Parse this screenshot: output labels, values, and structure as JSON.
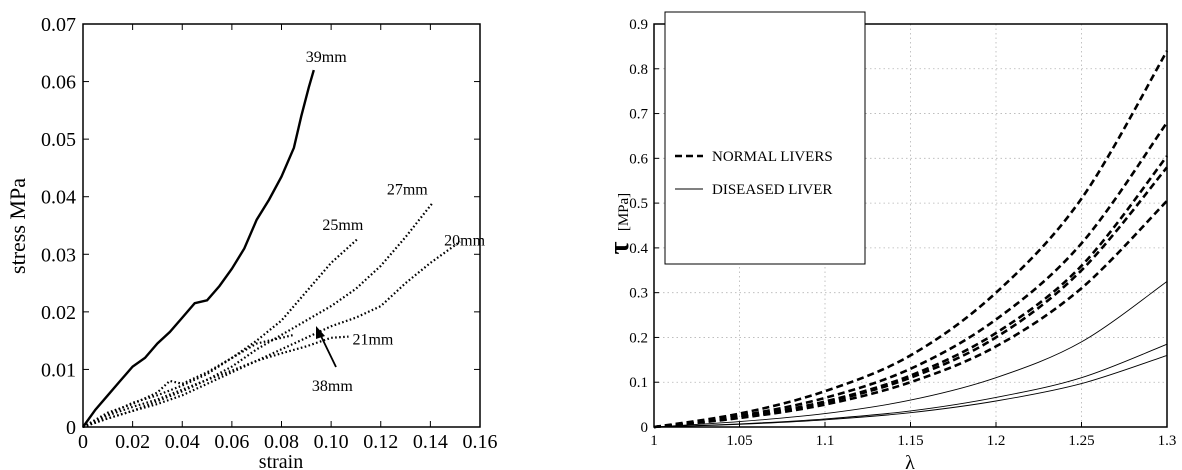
{
  "chart_data": [
    {
      "type": "line",
      "xlabel": "strain",
      "ylabel": "stress MPa",
      "xlim": [
        0,
        0.16
      ],
      "ylim": [
        0,
        0.07
      ],
      "xticks": [
        "0",
        "0.02",
        "0.04",
        "0.06",
        "0.08",
        "0.10",
        "0.12",
        "0.14",
        "0.16"
      ],
      "yticks": [
        "0",
        "0.01",
        "0.02",
        "0.03",
        "0.04",
        "0.05",
        "0.06",
        "0.07"
      ],
      "grid": false,
      "series": [
        {
          "name": "39mm",
          "style": "solid",
          "x": [
            0,
            0.005,
            0.01,
            0.015,
            0.02,
            0.025,
            0.03,
            0.035,
            0.04,
            0.045,
            0.05,
            0.055,
            0.06,
            0.065,
            0.07,
            0.075,
            0.08,
            0.085,
            0.088,
            0.091,
            0.093
          ],
          "y": [
            0,
            0.003,
            0.0055,
            0.008,
            0.0105,
            0.012,
            0.0145,
            0.0165,
            0.019,
            0.0215,
            0.022,
            0.0245,
            0.0275,
            0.031,
            0.036,
            0.0395,
            0.0435,
            0.0485,
            0.054,
            0.059,
            0.062
          ]
        },
        {
          "name": "25mm",
          "style": "dotted",
          "x": [
            0,
            0.01,
            0.02,
            0.03,
            0.04,
            0.05,
            0.06,
            0.07,
            0.08,
            0.09,
            0.1,
            0.111
          ],
          "y": [
            0,
            0.0022,
            0.0042,
            0.0055,
            0.0072,
            0.0092,
            0.012,
            0.015,
            0.0185,
            0.0235,
            0.0285,
            0.0328
          ]
        },
        {
          "name": "27mm",
          "style": "dotted",
          "x": [
            0,
            0.01,
            0.02,
            0.03,
            0.04,
            0.05,
            0.06,
            0.07,
            0.08,
            0.09,
            0.1,
            0.11,
            0.12,
            0.13,
            0.141
          ],
          "y": [
            0,
            0.0015,
            0.0028,
            0.0045,
            0.0062,
            0.0082,
            0.0105,
            0.0135,
            0.016,
            0.0185,
            0.021,
            0.024,
            0.028,
            0.033,
            0.039
          ]
        },
        {
          "name": "20mm",
          "style": "dotted",
          "x": [
            0,
            0.01,
            0.02,
            0.03,
            0.04,
            0.05,
            0.06,
            0.07,
            0.08,
            0.09,
            0.1,
            0.11,
            0.12,
            0.13,
            0.14,
            0.152
          ],
          "y": [
            0,
            0.0015,
            0.0028,
            0.004,
            0.0055,
            0.0075,
            0.0095,
            0.0115,
            0.0135,
            0.0155,
            0.0175,
            0.019,
            0.021,
            0.025,
            0.0285,
            0.0322
          ]
        },
        {
          "name": "21mm",
          "style": "dotted",
          "x": [
            0,
            0.01,
            0.02,
            0.03,
            0.04,
            0.05,
            0.06,
            0.07,
            0.08,
            0.09,
            0.1,
            0.107
          ],
          "y": [
            0,
            0.002,
            0.0035,
            0.0048,
            0.0065,
            0.0082,
            0.0098,
            0.0115,
            0.0128,
            0.014,
            0.0155,
            0.0157
          ]
        },
        {
          "name": "38mm",
          "style": "dotted",
          "x": [
            0,
            0.01,
            0.02,
            0.03,
            0.035,
            0.04,
            0.05,
            0.06,
            0.07,
            0.08,
            0.085
          ],
          "y": [
            0,
            0.0025,
            0.004,
            0.006,
            0.008,
            0.0075,
            0.0095,
            0.012,
            0.0145,
            0.0155,
            0.016
          ]
        }
      ],
      "annotations": [
        "39mm",
        "25mm",
        "27mm",
        "20mm",
        "21mm",
        "38mm"
      ]
    },
    {
      "type": "line",
      "xlabel": "λ",
      "ylabel": "τ",
      "ylabel_unit": "[MPa]",
      "xlim": [
        1,
        1.3
      ],
      "ylim": [
        0,
        0.9
      ],
      "xticks": [
        "1",
        "1.05",
        "1.1",
        "1.15",
        "1.2",
        "1.25",
        "1.3"
      ],
      "yticks": [
        "0",
        "0.1",
        "0.2",
        "0.3",
        "0.4",
        "0.5",
        "0.6",
        "0.7",
        "0.8",
        "0.9"
      ],
      "grid": true,
      "legend_position": "top-left",
      "legend": [
        {
          "label": "NORMAL LIVERS",
          "style": "dashed"
        },
        {
          "label": "DISEASED LIVER",
          "style": "solid"
        }
      ],
      "series": [
        {
          "group": "NORMAL LIVERS",
          "style": "dashed",
          "x": [
            1,
            1.05,
            1.1,
            1.15,
            1.2,
            1.25,
            1.3
          ],
          "y": [
            0,
            0.03,
            0.08,
            0.16,
            0.3,
            0.51,
            0.84
          ]
        },
        {
          "group": "NORMAL LIVERS",
          "style": "dashed",
          "x": [
            1,
            1.05,
            1.1,
            1.15,
            1.2,
            1.25,
            1.3
          ],
          "y": [
            0,
            0.025,
            0.065,
            0.13,
            0.24,
            0.41,
            0.68
          ]
        },
        {
          "group": "NORMAL LIVERS",
          "style": "dashed",
          "x": [
            1,
            1.05,
            1.1,
            1.15,
            1.2,
            1.25,
            1.3
          ],
          "y": [
            0,
            0.022,
            0.057,
            0.115,
            0.21,
            0.36,
            0.605
          ]
        },
        {
          "group": "NORMAL LIVERS",
          "style": "dashed",
          "x": [
            1,
            1.05,
            1.1,
            1.15,
            1.2,
            1.25,
            1.3
          ],
          "y": [
            0,
            0.021,
            0.055,
            0.11,
            0.2,
            0.35,
            0.58
          ]
        },
        {
          "group": "NORMAL LIVERS",
          "style": "dashed",
          "x": [
            1,
            1.05,
            1.1,
            1.15,
            1.2,
            1.25,
            1.3
          ],
          "y": [
            0,
            0.02,
            0.05,
            0.1,
            0.18,
            0.31,
            0.505
          ]
        },
        {
          "group": "DISEASED LIVER",
          "style": "solid",
          "x": [
            1,
            1.05,
            1.1,
            1.15,
            1.2,
            1.25,
            1.3
          ],
          "y": [
            0,
            0.012,
            0.03,
            0.06,
            0.11,
            0.19,
            0.325
          ]
        },
        {
          "group": "DISEASED LIVER",
          "style": "solid",
          "x": [
            1,
            1.05,
            1.1,
            1.15,
            1.2,
            1.25,
            1.3
          ],
          "y": [
            0,
            0.007,
            0.018,
            0.036,
            0.066,
            0.11,
            0.185
          ]
        },
        {
          "group": "DISEASED LIVER",
          "style": "solid",
          "x": [
            1,
            1.05,
            1.1,
            1.15,
            1.2,
            1.25,
            1.3
          ],
          "y": [
            0,
            0.006,
            0.016,
            0.032,
            0.058,
            0.097,
            0.16
          ]
        }
      ]
    }
  ]
}
